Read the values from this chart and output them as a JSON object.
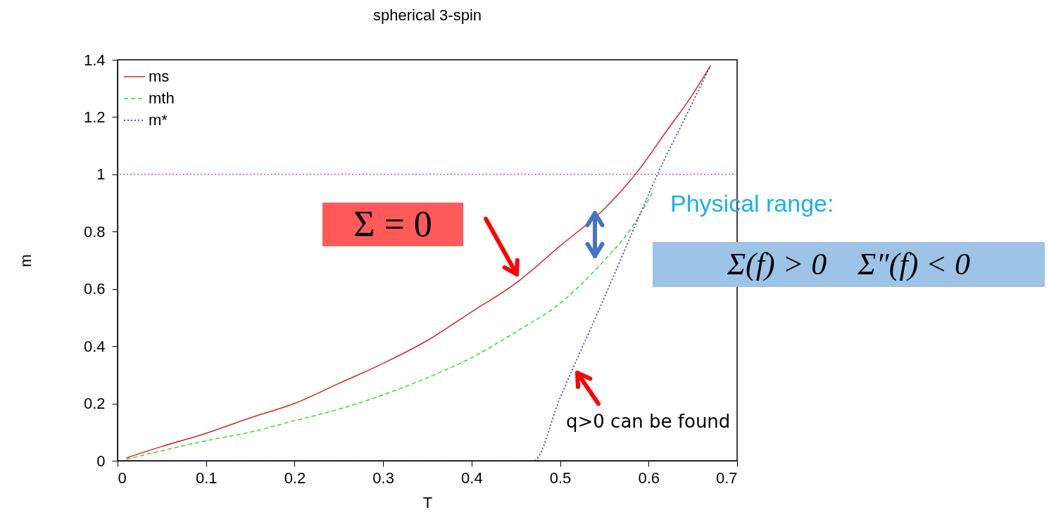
{
  "chart_data": {
    "type": "line",
    "title": "spherical 3-spin",
    "xlabel": "T",
    "ylabel": "m",
    "xlim": [
      0,
      0.7
    ],
    "xticks": [
      0,
      0.1,
      0.2,
      0.3,
      0.4,
      0.5,
      0.6,
      0.7
    ],
    "ylim": [
      0,
      1.4
    ],
    "yticks": [
      0,
      0.2,
      0.4,
      0.6,
      0.8,
      1,
      1.2,
      1.4
    ],
    "grid": false,
    "legend": "top left",
    "series": [
      {
        "name": "ms",
        "color": "#d62728",
        "line_style": "solid",
        "x": [
          0.01,
          0.05,
          0.1,
          0.15,
          0.2,
          0.25,
          0.3,
          0.35,
          0.4,
          0.45,
          0.5,
          0.55,
          0.585,
          0.62,
          0.65,
          0.67
        ],
        "values": [
          0.01,
          0.05,
          0.096,
          0.15,
          0.2,
          0.27,
          0.34,
          0.42,
          0.52,
          0.62,
          0.75,
          0.88,
          1.0,
          1.15,
          1.28,
          1.38
        ]
      },
      {
        "name": "mth",
        "color": "#33dd33",
        "line_style": "dashed",
        "x": [
          0.01,
          0.05,
          0.1,
          0.15,
          0.2,
          0.25,
          0.3,
          0.35,
          0.4,
          0.45,
          0.5,
          0.55,
          0.58,
          0.605
        ],
        "values": [
          0.005,
          0.035,
          0.07,
          0.1,
          0.14,
          0.18,
          0.23,
          0.29,
          0.36,
          0.45,
          0.55,
          0.7,
          0.81,
          0.94
        ]
      },
      {
        "name": "m*",
        "color": "#2222aa",
        "line_style": "dotted",
        "x": [
          0.01,
          0.47,
          0.5,
          0.55,
          0.6,
          0.61,
          0.64,
          0.67
        ],
        "values": [
          0,
          0,
          0.22,
          0.57,
          0.93,
          1.0,
          1.19,
          1.38
        ]
      }
    ],
    "ref_lines": [
      {
        "axis": "y",
        "value": 1,
        "color": "#dd44dd",
        "line_style": "dotted"
      }
    ],
    "annotations": [
      "Σ = 0",
      "Physical range:",
      "Σ(f) > 0    Σ″(f) < 0",
      "q>0 can be found"
    ]
  }
}
